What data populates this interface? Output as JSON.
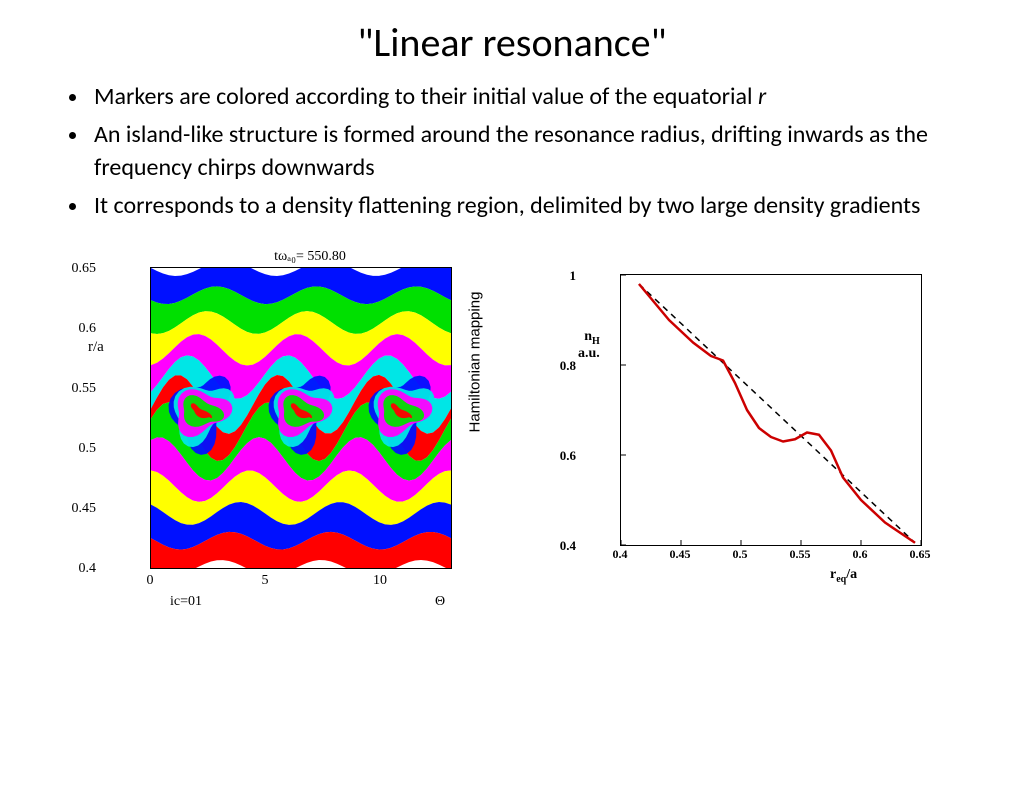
{
  "title": "\"Linear resonance\"",
  "bullets": [
    {
      "text": "Markers are colored according to their initial value of the equatorial ",
      "italic_tail": "r"
    },
    {
      "text": "An island-like structure is formed around the resonance radius, drifting inwards as the frequency chirps downwards"
    },
    {
      "text": "It corresponds to a density flattening region, delimited by two large density gradients"
    }
  ],
  "left_chart": {
    "type": "colormap",
    "title": "tωₐ₀= 550.80",
    "ylabel": "r/a",
    "xlabel": "Θ",
    "footer": "ic=01",
    "xlim": [
      0,
      13
    ],
    "ylim": [
      0.4,
      0.65
    ],
    "xticks": [
      0,
      5,
      10
    ],
    "yticks": [
      0.4,
      0.45,
      0.5,
      0.55,
      0.6,
      0.65
    ],
    "band_colors": [
      "#0010ff",
      "#00e000",
      "#ffff00",
      "#ff00ff",
      "#00e6e6",
      "#ff0000",
      "#00e000",
      "#ff00ff",
      "#ffff00",
      "#0010ff",
      "#ff0000"
    ],
    "side_label": "Hamiltonian mapping"
  },
  "right_chart": {
    "type": "line",
    "ylabel_top": "n",
    "ylabel_sub": "H",
    "ylabel_bot": "a.u.",
    "xlabel_main": "r",
    "xlabel_sub": "eq",
    "xlabel_tail": "/a",
    "xlim": [
      0.4,
      0.65
    ],
    "ylim": [
      0.4,
      1.0
    ],
    "xticks": [
      0.4,
      0.45,
      0.5,
      0.55,
      0.6,
      0.65
    ],
    "yticks": [
      0.4,
      0.6,
      0.8,
      1.0
    ],
    "line_color": "#cc0000",
    "line_width": 2.5,
    "dash_color": "#000000",
    "dash_pattern": "6,5",
    "line_points": [
      [
        0.415,
        0.98
      ],
      [
        0.44,
        0.9
      ],
      [
        0.46,
        0.85
      ],
      [
        0.475,
        0.82
      ],
      [
        0.485,
        0.81
      ],
      [
        0.495,
        0.76
      ],
      [
        0.505,
        0.7
      ],
      [
        0.515,
        0.66
      ],
      [
        0.525,
        0.64
      ],
      [
        0.535,
        0.63
      ],
      [
        0.545,
        0.635
      ],
      [
        0.555,
        0.65
      ],
      [
        0.565,
        0.645
      ],
      [
        0.575,
        0.61
      ],
      [
        0.585,
        0.55
      ],
      [
        0.6,
        0.5
      ],
      [
        0.62,
        0.45
      ],
      [
        0.645,
        0.405
      ]
    ],
    "dash_points": [
      [
        0.415,
        0.98
      ],
      [
        0.645,
        0.405
      ]
    ]
  },
  "colors": {
    "background": "#ffffff",
    "text": "#000000"
  },
  "fonts": {
    "title_size": 40,
    "bullet_size": 24,
    "axis_size": 13
  }
}
